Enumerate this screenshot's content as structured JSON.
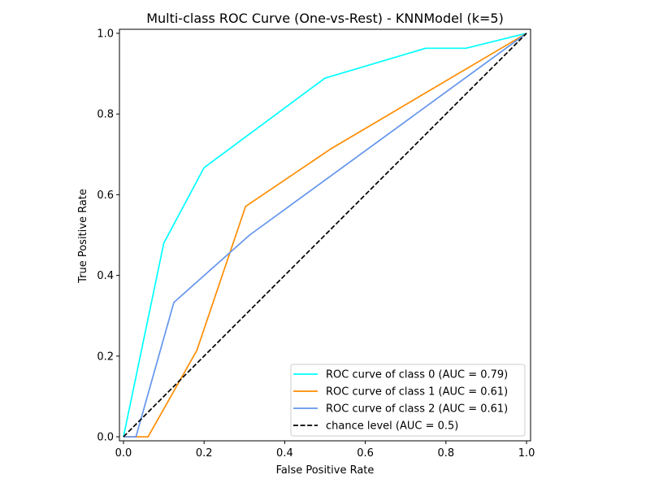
{
  "chart_data": {
    "type": "line",
    "title": "Multi-class ROC Curve (One-vs-Rest) - KNNModel (k=5)",
    "xlabel": "False Positive Rate",
    "ylabel": "True Positive Rate",
    "xlim": [
      -0.01,
      1.01
    ],
    "ylim": [
      -0.01,
      1.01
    ],
    "xticks": [
      0.0,
      0.2,
      0.4,
      0.6,
      0.8,
      1.0
    ],
    "yticks": [
      0.0,
      0.2,
      0.4,
      0.6,
      0.8,
      1.0
    ],
    "xtick_labels": [
      "0.0",
      "0.2",
      "0.4",
      "0.6",
      "0.8",
      "1.0"
    ],
    "ytick_labels": [
      "0.0",
      "0.2",
      "0.4",
      "0.6",
      "0.8",
      "1.0"
    ],
    "grid": false,
    "legend_position": "lower-right",
    "series": [
      {
        "name": "ROC curve of class 0 (AUC = 0.79)",
        "color": "#00ffff",
        "dash": "solid",
        "x": [
          0.0,
          0.1,
          0.2,
          0.5,
          0.75,
          0.85,
          1.0
        ],
        "y": [
          0.0,
          0.48,
          0.667,
          0.889,
          0.963,
          0.963,
          1.0
        ]
      },
      {
        "name": "ROC curve of class 1 (AUC = 0.61)",
        "color": "#ff8c00",
        "dash": "solid",
        "x": [
          0.0,
          0.061,
          0.182,
          0.303,
          0.515,
          1.0
        ],
        "y": [
          0.0,
          0.0,
          0.214,
          0.571,
          0.714,
          1.0
        ]
      },
      {
        "name": "ROC curve of class 2 (AUC = 0.61)",
        "color": "#6495ed",
        "dash": "solid",
        "x": [
          0.0,
          0.031,
          0.125,
          0.313,
          1.0
        ],
        "y": [
          0.0,
          0.0,
          0.333,
          0.5,
          1.0
        ]
      },
      {
        "name": "chance level (AUC = 0.5)",
        "color": "#000000",
        "dash": "dashed",
        "x": [
          0.0,
          1.0
        ],
        "y": [
          0.0,
          1.0
        ]
      }
    ]
  }
}
